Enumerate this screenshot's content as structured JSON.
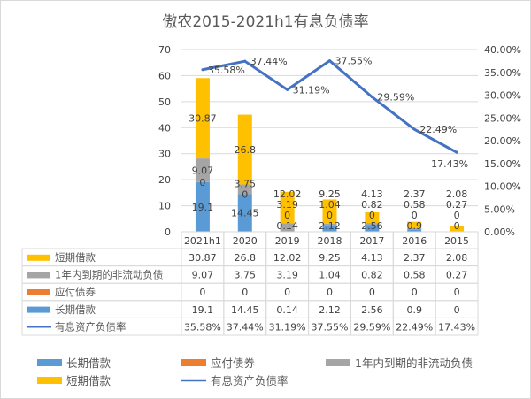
{
  "chart_data": {
    "type": "bar",
    "title": "傲农2015-2021h1有息负债率",
    "categories": [
      "2021h1",
      "2020",
      "2019",
      "2018",
      "2017",
      "2016",
      "2015"
    ],
    "stacked": true,
    "series": [
      {
        "name": "长期借款",
        "kind": "bar",
        "color": "#5b9bd5",
        "values": [
          19.1,
          14.45,
          0.14,
          2.12,
          2.56,
          0.9,
          0
        ]
      },
      {
        "name": "应付债券",
        "kind": "bar",
        "color": "#ed7d31",
        "values": [
          0,
          0,
          0,
          0,
          0,
          0,
          0
        ]
      },
      {
        "name": "1年内到期的非流动负债",
        "kind": "bar",
        "color": "#a5a5a5",
        "values": [
          9.07,
          3.75,
          3.19,
          1.04,
          0.82,
          0.58,
          0.27
        ]
      },
      {
        "name": "短期借款",
        "kind": "bar",
        "color": "#ffc000",
        "values": [
          30.87,
          26.8,
          12.02,
          9.25,
          4.13,
          2.37,
          2.08
        ]
      },
      {
        "name": "有息资产负债率",
        "kind": "line",
        "axis": "right",
        "color": "#4472c4",
        "values": [
          35.58,
          37.44,
          31.19,
          37.55,
          29.59,
          22.49,
          17.43
        ],
        "labels": [
          "35.58%",
          "37.44%",
          "31.19%",
          "37.55%",
          "29.59%",
          "22.49%",
          "17.43%"
        ]
      }
    ],
    "ylim": [
      0,
      70
    ],
    "yticks": [
      "0",
      "10",
      "20",
      "30",
      "40",
      "50",
      "60",
      "70"
    ],
    "y2lim": [
      0,
      40
    ],
    "y2ticks": [
      "0.00%",
      "5.00%",
      "10.00%",
      "15.00%",
      "20.00%",
      "25.00%",
      "30.00%",
      "35.00%",
      "40.00%"
    ],
    "table_rows": [
      {
        "name": "短期借款",
        "color": "#ffc000",
        "kind": "bar",
        "cells": [
          "30.87",
          "26.8",
          "12.02",
          "9.25",
          "4.13",
          "2.37",
          "2.08"
        ]
      },
      {
        "name": "1年内到期的非流动负债",
        "color": "#a5a5a5",
        "kind": "bar",
        "cells": [
          "9.07",
          "3.75",
          "3.19",
          "1.04",
          "0.82",
          "0.58",
          "0.27"
        ]
      },
      {
        "name": "应付债券",
        "color": "#ed7d31",
        "kind": "bar",
        "cells": [
          "0",
          "0",
          "0",
          "0",
          "0",
          "0",
          "0"
        ]
      },
      {
        "name": "长期借款",
        "color": "#5b9bd5",
        "kind": "bar",
        "cells": [
          "19.1",
          "14.45",
          "0.14",
          "2.12",
          "2.56",
          "0.9",
          "0"
        ]
      },
      {
        "name": "有息资产负债率",
        "color": "#4472c4",
        "kind": "line",
        "cells": [
          "35.58%",
          "37.44%",
          "31.19%",
          "37.55%",
          "29.59%",
          "22.49%",
          "17.43%"
        ]
      }
    ],
    "legend": [
      {
        "name": "长期借款",
        "color": "#5b9bd5",
        "kind": "bar"
      },
      {
        "name": "应付债券",
        "color": "#ed7d31",
        "kind": "bar"
      },
      {
        "name": "1年内到期的非流动负债",
        "color": "#a5a5a5",
        "kind": "bar"
      },
      {
        "name": "短期借款",
        "color": "#ffc000",
        "kind": "bar"
      },
      {
        "name": "有息资产负债率",
        "color": "#4472c4",
        "kind": "line"
      }
    ],
    "legend_position": "bottom",
    "grid": true
  }
}
